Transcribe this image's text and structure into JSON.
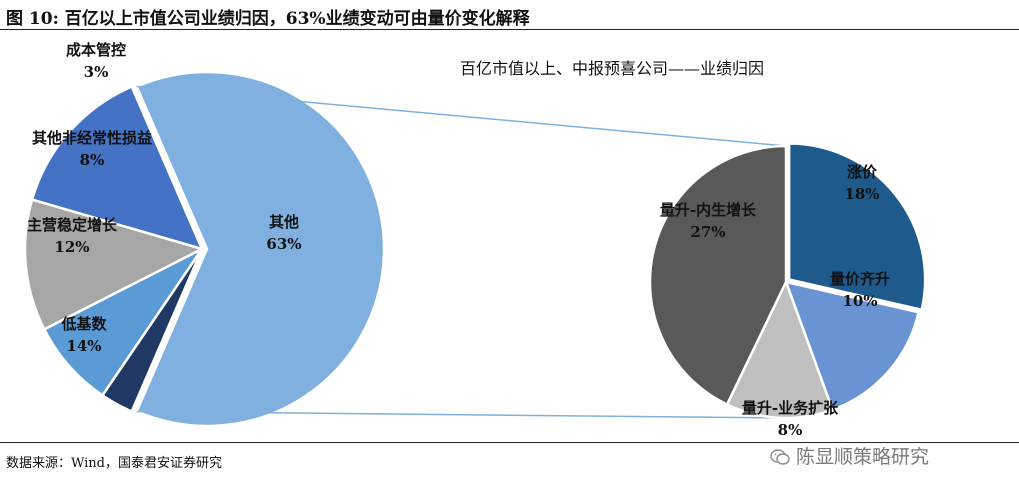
{
  "figure_title": "图 10: 百亿以上市值公司业绩归因，63%业绩变动可由量价变化解释",
  "source": "数据来源：Wind，国泰君安证券研究",
  "watermark": "陈显顺策略研究",
  "colors": {
    "other": "#7FB0DF",
    "low_base": "#4472C4",
    "stable_growth": "#A6A6A6",
    "non_recurring": "#5B9BD5",
    "cost_control": "#1F3864",
    "price_up": "#1F5A8C",
    "vol_price": "#6A93D4",
    "vol_expand": "#BFBFBF",
    "vol_intrinsic": "#595959",
    "connector": "#7FB0DF"
  },
  "chart_data": [
    {
      "type": "pie",
      "title": "",
      "slices": [
        {
          "label": "其他",
          "value": 63,
          "value_label": "63%",
          "color_key": "other"
        },
        {
          "label": "低基数",
          "value": 14,
          "value_label": "14%",
          "color_key": "low_base"
        },
        {
          "label": "主营稳定增长",
          "value": 12,
          "value_label": "12%",
          "color_key": "stable_growth"
        },
        {
          "label": "其他非经常性损益",
          "value": 8,
          "value_label": "8%",
          "color_key": "non_recurring"
        },
        {
          "label": "成本管控",
          "value": 3,
          "value_label": "3%",
          "color_key": "cost_control"
        }
      ]
    },
    {
      "type": "pie",
      "title": "百亿市值以上、中报预喜公司——业绩归因",
      "slices": [
        {
          "label": "涨价",
          "value": 18,
          "value_label": "18%",
          "color_key": "price_up"
        },
        {
          "label": "量价齐升",
          "value": 10,
          "value_label": "10%",
          "color_key": "vol_price"
        },
        {
          "label": "量升-业务扩张",
          "value": 8,
          "value_label": "8%",
          "color_key": "vol_expand"
        },
        {
          "label": "量升-内生增长",
          "value": 27,
          "value_label": "27%",
          "color_key": "vol_intrinsic"
        }
      ]
    }
  ]
}
